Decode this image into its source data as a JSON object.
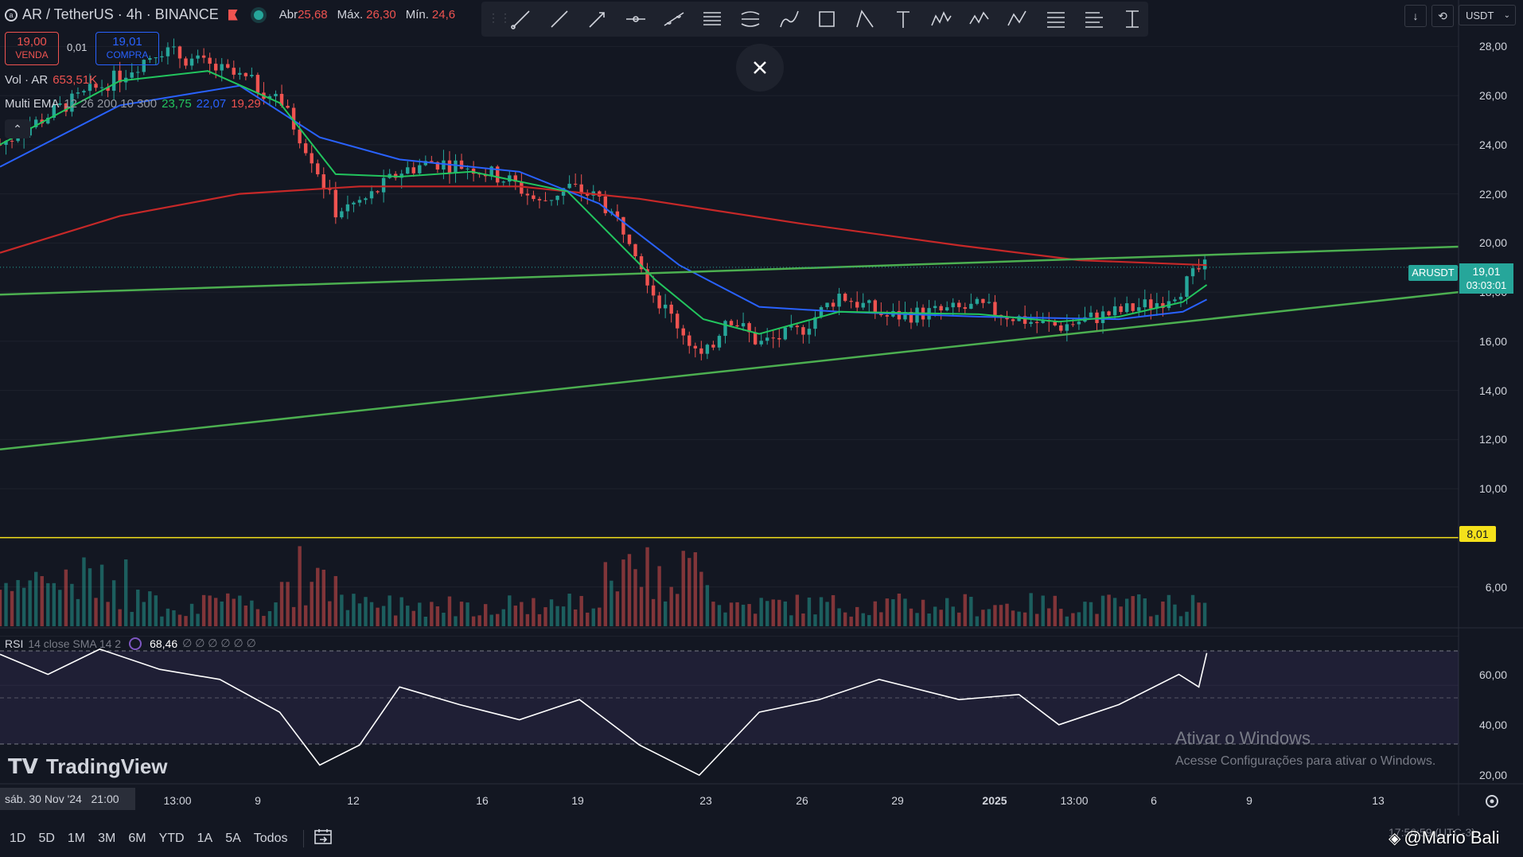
{
  "header": {
    "symbol_icon": "ar-coin-icon",
    "title": "AR / TetherUS · 4h · BINANCE",
    "ohlc": [
      {
        "label": "Abr",
        "value": "25,68"
      },
      {
        "label": "Máx.",
        "value": "26,30"
      },
      {
        "label": "Mín.",
        "value": "24,6"
      }
    ],
    "sell_price": "19,00",
    "sell_label": "VENDA",
    "spread": "0,01",
    "buy_price": "19,01",
    "buy_label": "COMPRA"
  },
  "indicators": {
    "vol_label": "Vol · AR",
    "vol_value": "653,51K",
    "ema_label": "Multi EMA",
    "ema_params": "12 26 200 10 300",
    "ema_values": [
      "23,75",
      "22,07",
      "19,29"
    ],
    "rsi_label": "RSI",
    "rsi_params": "14 close SMA 14 2",
    "rsi_value": "68,46",
    "rsi_extra": "∅ ∅ ∅ ∅ ∅ ∅"
  },
  "toolbar": {
    "tools": [
      "trend-line-icon",
      "ray-icon",
      "arrow-line-icon",
      "horizontal-ray-icon",
      "extended-line-icon",
      "parallel-channel-icon",
      "regression-channel-icon",
      "brush-icon",
      "rectangle-icon",
      "path-icon",
      "text-icon",
      "pattern-icon",
      "elliott-wave-icon",
      "abcd-icon",
      "fib-retracement-icon",
      "fib-extension-icon",
      "measure-icon"
    ],
    "currency": "USDT"
  },
  "price_axis": {
    "ticks": [
      "28,00",
      "26,00",
      "24,00",
      "22,00",
      "20,00",
      "18,00",
      "16,00",
      "14,00",
      "12,00",
      "10,00",
      "6,00"
    ],
    "symbol_tag": "ARUSDT",
    "current_price": "19,01",
    "countdown": "03:03:01",
    "hline_price": "8,01"
  },
  "rsi_axis": {
    "ticks": [
      "60,00",
      "40,00",
      "20,00"
    ]
  },
  "time_axis": {
    "cursor_label": "sáb. 30 Nov '24   21:00",
    "ticks": [
      "13:00",
      "9",
      "12",
      "16",
      "19",
      "23",
      "26",
      "29",
      "2025",
      "13:00",
      "6",
      "9",
      "13"
    ]
  },
  "bottom_bar": {
    "timeframes": [
      "1D",
      "5D",
      "1M",
      "3M",
      "6M",
      "YTD",
      "1A",
      "5A",
      "Todos"
    ],
    "clock": "17:56:59 (UTC-3)"
  },
  "watermark": {
    "activate_title": "Ativar o Windows",
    "activate_sub": "Acesse Configurações para ativar o Windows.",
    "logo_text": "TradingView",
    "author": "@Mario Bali"
  },
  "colors": {
    "background": "#131722",
    "up": "#26a69a",
    "down": "#ef5350",
    "ema_fast": "#22c55e",
    "ema_mid": "#2962ff",
    "ema_slow": "#c62828",
    "trendline": "#4caf50",
    "hline": "#f5e11b"
  },
  "chart_data": {
    "type": "candlestick",
    "interval": "4h",
    "y_range": [
      4.5,
      29.5
    ],
    "rsi_range": [
      15,
      75
    ],
    "close_path": [
      {
        "x": 0,
        "y": 24.0
      },
      {
        "x": 15,
        "y": 25.5
      },
      {
        "x": 30,
        "y": 26.8
      },
      {
        "x": 40,
        "y": 27.9
      },
      {
        "x": 52,
        "y": 27.2
      },
      {
        "x": 62,
        "y": 26.6
      },
      {
        "x": 70,
        "y": 25.8
      },
      {
        "x": 78,
        "y": 23.5
      },
      {
        "x": 84,
        "y": 21.3
      },
      {
        "x": 92,
        "y": 21.8
      },
      {
        "x": 100,
        "y": 22.9
      },
      {
        "x": 108,
        "y": 23.3
      },
      {
        "x": 118,
        "y": 23.1
      },
      {
        "x": 128,
        "y": 22.5
      },
      {
        "x": 135,
        "y": 21.6
      },
      {
        "x": 142,
        "y": 22.3
      },
      {
        "x": 150,
        "y": 21.8
      },
      {
        "x": 158,
        "y": 20.2
      },
      {
        "x": 164,
        "y": 17.8
      },
      {
        "x": 170,
        "y": 16.6
      },
      {
        "x": 176,
        "y": 15.2
      },
      {
        "x": 182,
        "y": 17.1
      },
      {
        "x": 190,
        "y": 15.9
      },
      {
        "x": 200,
        "y": 16.4
      },
      {
        "x": 210,
        "y": 17.9
      },
      {
        "x": 222,
        "y": 17.0
      },
      {
        "x": 235,
        "y": 17.2
      },
      {
        "x": 245,
        "y": 17.4
      },
      {
        "x": 258,
        "y": 16.8
      },
      {
        "x": 265,
        "y": 16.6
      },
      {
        "x": 272,
        "y": 16.9
      },
      {
        "x": 280,
        "y": 17.2
      },
      {
        "x": 290,
        "y": 17.6
      },
      {
        "x": 296,
        "y": 18.2
      },
      {
        "x": 300,
        "y": 18.9
      },
      {
        "x": 302,
        "y": 19.01
      }
    ],
    "ema_fast": [
      {
        "x": 0,
        "y": 24.0
      },
      {
        "x": 30,
        "y": 26.6
      },
      {
        "x": 52,
        "y": 27.0
      },
      {
        "x": 70,
        "y": 25.7
      },
      {
        "x": 84,
        "y": 22.8
      },
      {
        "x": 100,
        "y": 22.7
      },
      {
        "x": 118,
        "y": 22.9
      },
      {
        "x": 142,
        "y": 22.1
      },
      {
        "x": 164,
        "y": 18.5
      },
      {
        "x": 176,
        "y": 16.9
      },
      {
        "x": 190,
        "y": 16.3
      },
      {
        "x": 210,
        "y": 17.2
      },
      {
        "x": 245,
        "y": 17.1
      },
      {
        "x": 265,
        "y": 16.8
      },
      {
        "x": 280,
        "y": 17.0
      },
      {
        "x": 296,
        "y": 17.6
      },
      {
        "x": 302,
        "y": 18.3
      }
    ],
    "ema_mid": [
      {
        "x": 0,
        "y": 23.1
      },
      {
        "x": 30,
        "y": 25.6
      },
      {
        "x": 60,
        "y": 26.4
      },
      {
        "x": 80,
        "y": 24.3
      },
      {
        "x": 100,
        "y": 23.4
      },
      {
        "x": 130,
        "y": 22.9
      },
      {
        "x": 150,
        "y": 21.6
      },
      {
        "x": 170,
        "y": 19.1
      },
      {
        "x": 190,
        "y": 17.4
      },
      {
        "x": 210,
        "y": 17.2
      },
      {
        "x": 245,
        "y": 17.0
      },
      {
        "x": 280,
        "y": 16.9
      },
      {
        "x": 296,
        "y": 17.2
      },
      {
        "x": 302,
        "y": 17.7
      }
    ],
    "ema_slow": [
      {
        "x": 0,
        "y": 19.6
      },
      {
        "x": 30,
        "y": 21.1
      },
      {
        "x": 60,
        "y": 22.0
      },
      {
        "x": 90,
        "y": 22.3
      },
      {
        "x": 130,
        "y": 22.3
      },
      {
        "x": 160,
        "y": 21.8
      },
      {
        "x": 200,
        "y": 20.8
      },
      {
        "x": 240,
        "y": 19.9
      },
      {
        "x": 270,
        "y": 19.3
      },
      {
        "x": 302,
        "y": 19.1
      }
    ],
    "trendlines": [
      {
        "name": "upper",
        "x": [
          0,
          365
        ],
        "y": [
          17.9,
          19.85
        ]
      },
      {
        "name": "lower",
        "x": [
          0,
          365
        ],
        "y": [
          11.6,
          18.0
        ]
      }
    ],
    "hline": 8.01,
    "rsi": [
      {
        "x": 0,
        "y": 68
      },
      {
        "x": 12,
        "y": 60
      },
      {
        "x": 25,
        "y": 70
      },
      {
        "x": 40,
        "y": 62
      },
      {
        "x": 55,
        "y": 58
      },
      {
        "x": 70,
        "y": 45
      },
      {
        "x": 80,
        "y": 24
      },
      {
        "x": 90,
        "y": 32
      },
      {
        "x": 100,
        "y": 55
      },
      {
        "x": 115,
        "y": 48
      },
      {
        "x": 130,
        "y": 42
      },
      {
        "x": 145,
        "y": 50
      },
      {
        "x": 160,
        "y": 32
      },
      {
        "x": 175,
        "y": 20
      },
      {
        "x": 190,
        "y": 45
      },
      {
        "x": 205,
        "y": 50
      },
      {
        "x": 220,
        "y": 58
      },
      {
        "x": 240,
        "y": 50
      },
      {
        "x": 255,
        "y": 52
      },
      {
        "x": 265,
        "y": 40
      },
      {
        "x": 280,
        "y": 48
      },
      {
        "x": 295,
        "y": 60
      },
      {
        "x": 300,
        "y": 55
      },
      {
        "x": 302,
        "y": 68.46
      }
    ]
  }
}
